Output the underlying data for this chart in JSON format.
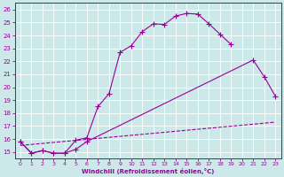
{
  "xlabel": "Windchill (Refroidissement éolien,°C)",
  "bg_color": "#cce8e8",
  "line_color": "#990099",
  "curve1_x": [
    0,
    1,
    2,
    3,
    4,
    5,
    6,
    7,
    8,
    9,
    10,
    11,
    12,
    13,
    14,
    15,
    16,
    17,
    18,
    19
  ],
  "curve1_y": [
    15.8,
    14.9,
    15.1,
    14.9,
    14.9,
    15.9,
    16.1,
    18.5,
    19.5,
    22.7,
    23.2,
    24.3,
    24.9,
    24.85,
    25.5,
    25.7,
    25.65,
    24.9,
    24.1,
    23.3
  ],
  "curve2_x": [
    0,
    1,
    2,
    3,
    4,
    5,
    6,
    21,
    22,
    23
  ],
  "curve2_y": [
    15.8,
    14.9,
    15.1,
    14.9,
    14.9,
    15.2,
    15.8,
    22.1,
    20.8,
    19.3
  ],
  "curve3_x": [
    0,
    23
  ],
  "curve3_y": [
    15.5,
    17.3
  ],
  "ylim": [
    14.5,
    26.5
  ],
  "xlim": [
    -0.5,
    23.5
  ],
  "yticks": [
    15,
    16,
    17,
    18,
    19,
    20,
    21,
    22,
    23,
    24,
    25,
    26
  ],
  "xticks": [
    0,
    1,
    2,
    3,
    4,
    5,
    6,
    7,
    8,
    9,
    10,
    11,
    12,
    13,
    14,
    15,
    16,
    17,
    18,
    19,
    20,
    21,
    22,
    23
  ]
}
